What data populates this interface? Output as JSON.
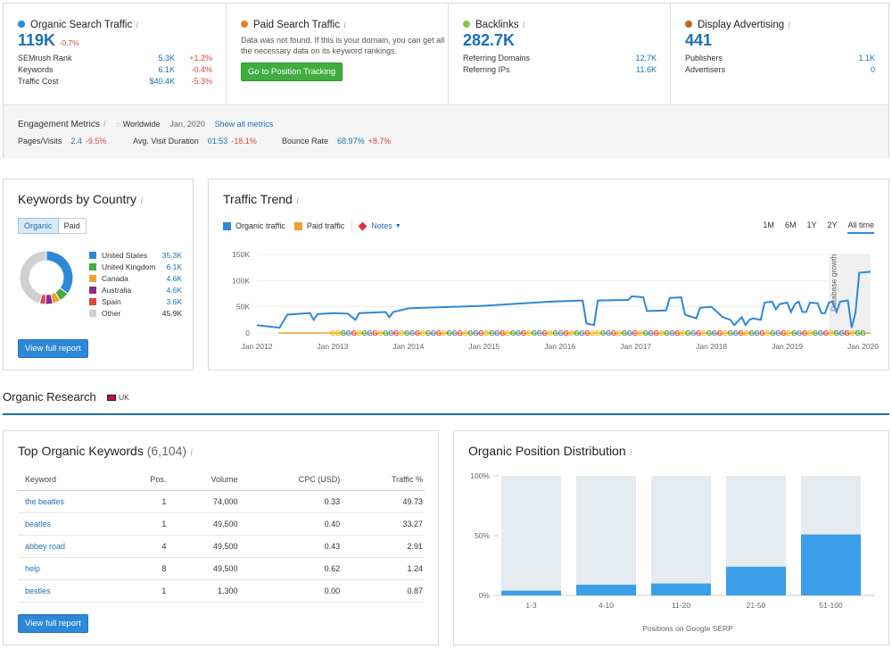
{
  "overview": {
    "organic": {
      "title": "Organic Search Traffic",
      "value": "119K",
      "change": "-0.7%",
      "color": "#2e88d8",
      "rows": [
        {
          "label": "SEMrush Rank",
          "value": "5.3K",
          "change": "+1.2%"
        },
        {
          "label": "Keywords",
          "value": "6.1K",
          "change": "-0.4%"
        },
        {
          "label": "Traffic Cost",
          "value": "$40.4K",
          "change": "-5.3%"
        }
      ]
    },
    "paid": {
      "title": "Paid Search Traffic",
      "color": "#f07b2f",
      "message1": "Data was not found. If this is your domain, you can get all",
      "message2": "the necessary data on its keyword rankings.",
      "button": "Go to Position Tracking"
    },
    "backlinks": {
      "title": "Backlinks",
      "value": "282.7K",
      "color": "#8bc34a",
      "rows": [
        {
          "label": "Referring Domains",
          "value": "12.7K"
        },
        {
          "label": "Referring IPs",
          "value": "11.6K"
        }
      ]
    },
    "display": {
      "title": "Display Advertising",
      "value": "441",
      "color": "#b8662b",
      "rows": [
        {
          "label": "Publishers",
          "value": "1.1K"
        },
        {
          "label": "Advertisers",
          "value": "0"
        }
      ]
    }
  },
  "engagement": {
    "title": "Engagement Metrics",
    "region": "Worldwide",
    "date": "Jan, 2020",
    "link": "Show all metrics",
    "metrics": [
      {
        "label": "Pages/Visits",
        "value": "2.4",
        "change": "-9.5%"
      },
      {
        "label": "Avg. Visit Duration",
        "value": "01:53",
        "change": "-18.1%"
      },
      {
        "label": "Bounce Rate",
        "value": "68.97%",
        "change": "+8.7%"
      }
    ]
  },
  "country": {
    "title": "Keywords by Country",
    "tabs": [
      "Organic",
      "Paid"
    ],
    "button": "View full report",
    "items": [
      {
        "name": "United States",
        "value": "35.3K",
        "color": "#2e88d8"
      },
      {
        "name": "United Kingdom",
        "value": "6.1K",
        "color": "#3fae3f"
      },
      {
        "name": "Canada",
        "value": "4.6K",
        "color": "#f0a030"
      },
      {
        "name": "Australia",
        "value": "4.6K",
        "color": "#8e2a8e"
      },
      {
        "name": "Spain",
        "value": "3.6K",
        "color": "#e0453b"
      },
      {
        "name": "Other",
        "value": "45.9K",
        "color": "#d0d0d0"
      }
    ]
  },
  "trend": {
    "title": "Traffic Trend",
    "legend": [
      "Organic traffic",
      "Paid traffic",
      "Notes"
    ],
    "ranges": [
      "1M",
      "6M",
      "1Y",
      "2Y",
      "All time"
    ],
    "active_range": "All time",
    "annotation": "Database growth"
  },
  "trend_chart": {
    "type": "line",
    "x": [
      "Jan 2012",
      "Jan 2013",
      "Jan 2014",
      "Jan 2015",
      "Jan 2016",
      "Jan 2017",
      "Jan 2018",
      "Jan 2019",
      "Jan 2020"
    ],
    "yticks": [
      "150K",
      "100K",
      "50K",
      "0"
    ],
    "ylim": [
      0,
      150000
    ],
    "points": [
      [
        2012.0,
        15000
      ],
      [
        2012.3,
        10000
      ],
      [
        2012.4,
        35000
      ],
      [
        2012.7,
        38000
      ],
      [
        2012.75,
        25000
      ],
      [
        2012.8,
        36000
      ],
      [
        2013.0,
        38000
      ],
      [
        2013.2,
        37000
      ],
      [
        2013.3,
        25000
      ],
      [
        2013.35,
        38000
      ],
      [
        2013.7,
        40000
      ],
      [
        2013.75,
        30000
      ],
      [
        2013.8,
        40000
      ],
      [
        2014.0,
        47000
      ],
      [
        2015.0,
        52000
      ],
      [
        2015.9,
        60000
      ],
      [
        2016.3,
        62000
      ],
      [
        2016.35,
        18000
      ],
      [
        2016.45,
        15000
      ],
      [
        2016.5,
        62000
      ],
      [
        2016.9,
        63000
      ],
      [
        2016.95,
        70000
      ],
      [
        2017.1,
        68000
      ],
      [
        2017.15,
        42000
      ],
      [
        2017.4,
        43000
      ],
      [
        2017.45,
        67000
      ],
      [
        2017.6,
        68000
      ],
      [
        2017.65,
        35000
      ],
      [
        2017.8,
        28000
      ],
      [
        2017.85,
        48000
      ],
      [
        2018.0,
        50000
      ],
      [
        2018.15,
        30000
      ],
      [
        2018.25,
        25000
      ],
      [
        2018.3,
        15000
      ],
      [
        2018.4,
        30000
      ],
      [
        2018.45,
        15000
      ],
      [
        2018.5,
        25000
      ],
      [
        2018.55,
        28000
      ],
      [
        2018.65,
        25000
      ],
      [
        2018.7,
        58000
      ],
      [
        2018.8,
        60000
      ],
      [
        2018.85,
        45000
      ],
      [
        2018.9,
        55000
      ],
      [
        2019.0,
        58000
      ],
      [
        2019.05,
        40000
      ],
      [
        2019.1,
        55000
      ],
      [
        2019.15,
        60000
      ],
      [
        2019.2,
        40000
      ],
      [
        2019.25,
        40000
      ],
      [
        2019.3,
        58000
      ],
      [
        2019.4,
        57000
      ],
      [
        2019.45,
        38000
      ],
      [
        2019.5,
        38000
      ],
      [
        2019.55,
        58000
      ],
      [
        2019.6,
        60000
      ],
      [
        2019.65,
        40000
      ],
      [
        2019.7,
        60000
      ],
      [
        2019.8,
        62000
      ],
      [
        2019.85,
        10000
      ],
      [
        2019.9,
        38000
      ],
      [
        2019.95,
        115000
      ],
      [
        2020.1,
        117000
      ]
    ],
    "months_ranges": "range labels above"
  },
  "organic_research": {
    "title": "Organic Research",
    "db": "UK"
  },
  "keywords": {
    "title": "Top Organic Keywords",
    "count": "(6,104)",
    "button": "View full report",
    "headers": [
      "Keyword",
      "Pos.",
      "Volume",
      "CPC (USD)",
      "Traffic %"
    ],
    "rows": [
      [
        "the beatles",
        "1",
        "74,000",
        "0.33",
        "49.73"
      ],
      [
        "beatles",
        "1",
        "49,500",
        "0.40",
        "33.27"
      ],
      [
        "abbey road",
        "4",
        "49,500",
        "0.43",
        "2.91"
      ],
      [
        "help",
        "8",
        "49,500",
        "0.62",
        "1.24"
      ],
      [
        "bestles",
        "1",
        "1,300",
        "0.00",
        "0.87"
      ]
    ]
  },
  "distribution": {
    "title": "Organic Position Distribution",
    "xlabel": "Positions on Google SERP",
    "yticks": [
      "100%",
      "50%",
      "0%"
    ]
  },
  "chart_data": {
    "type": "bar",
    "categories": [
      "1-3",
      "4-10",
      "11-20",
      "21-50",
      "51-100"
    ],
    "values": [
      4,
      9,
      10,
      24,
      51
    ],
    "ylim": [
      0,
      100
    ],
    "xlabel": "Positions on Google SERP",
    "ylabel": ""
  }
}
